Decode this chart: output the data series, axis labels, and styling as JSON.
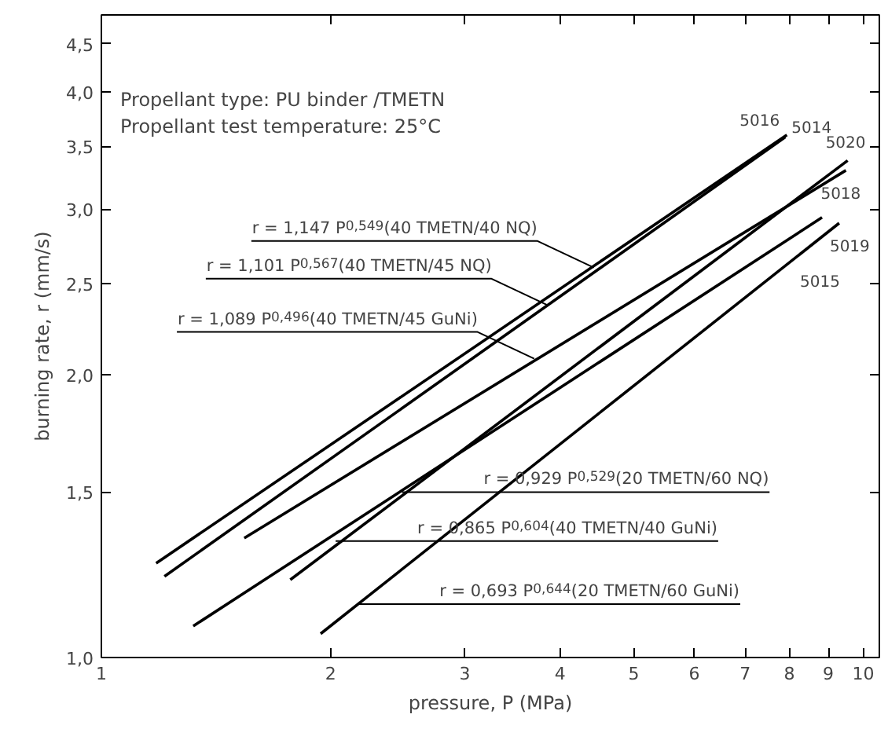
{
  "chart_data": {
    "type": "line",
    "xlabel": "pressure, P (MPa)",
    "ylabel": "burning rate, r (mm/s)",
    "log": "xy",
    "grid": false,
    "legend": "right",
    "marker": "none",
    "line_style": "solid",
    "xlim": [
      1,
      10.5
    ],
    "ylim": [
      1,
      4.83
    ],
    "xticks": [
      1,
      2,
      3,
      4,
      5,
      6,
      7,
      8,
      9,
      10
    ],
    "yticks": [
      {
        "value": 1.0,
        "label": "1,0"
      },
      {
        "value": 1.5,
        "label": "1,5"
      },
      {
        "value": 2.0,
        "label": "2,0"
      },
      {
        "value": 2.5,
        "label": "2,5"
      },
      {
        "value": 3.0,
        "label": "3,0"
      },
      {
        "value": 3.5,
        "label": "3,5"
      },
      {
        "value": 4.0,
        "label": "4,0"
      },
      {
        "value": 4.5,
        "label": "4,5"
      }
    ],
    "series": [
      {
        "name": "5016",
        "color": "#000000",
        "x": [
          1.18,
          7.94
        ],
        "values": [
          1.26,
          3.6
        ]
      },
      {
        "name": "5014",
        "color": "#000000",
        "x": [
          1.21,
          7.9
        ],
        "values": [
          1.22,
          3.58
        ]
      },
      {
        "name": "5020",
        "color": "#000000",
        "x": [
          1.77,
          9.54
        ],
        "values": [
          1.21,
          3.38
        ]
      },
      {
        "name": "5018",
        "color": "#000000",
        "x": [
          1.54,
          9.49
        ],
        "values": [
          1.34,
          3.3
        ]
      },
      {
        "name": "5019",
        "color": "#000000",
        "x": [
          1.94,
          9.3
        ],
        "values": [
          1.06,
          2.9
        ]
      },
      {
        "name": "5015",
        "color": "#000000",
        "x": [
          1.32,
          8.83
        ],
        "values": [
          1.08,
          2.94
        ]
      }
    ],
    "annotations": [
      "Propellant type: PU binder /TMETN",
      "Propellant test temperature: 25°C",
      {
        "text": "r = 1,147 P$^{0,549}$(40 TMETN/40 NQ)",
        "x": 4.43,
        "y": 2.6
      },
      {
        "text": "r = 1,101 P$^{0,567}$(40 TMETN/45 NQ)",
        "x": 3.86,
        "y": 2.37
      },
      {
        "text": "r = 1,089 P$^{0,496}$(40 TMETN/45 GuNi)",
        "x": 3.7,
        "y": 2.08
      },
      {
        "text": "r = 0,929 P$^{0,529}$(20 TMETN/60 NQ)",
        "x": 2.48,
        "y": 1.5
      },
      {
        "text": "r = 0,865 P$^{0,604}$(40 TMETN/40 GuNi)",
        "x": 2.03,
        "y": 1.33
      },
      {
        "text": "r = 0,693 P$^{0,644}$(20 TMETN/60 GuNi)",
        "x": 2.17,
        "y": 1.14
      }
    ]
  }
}
